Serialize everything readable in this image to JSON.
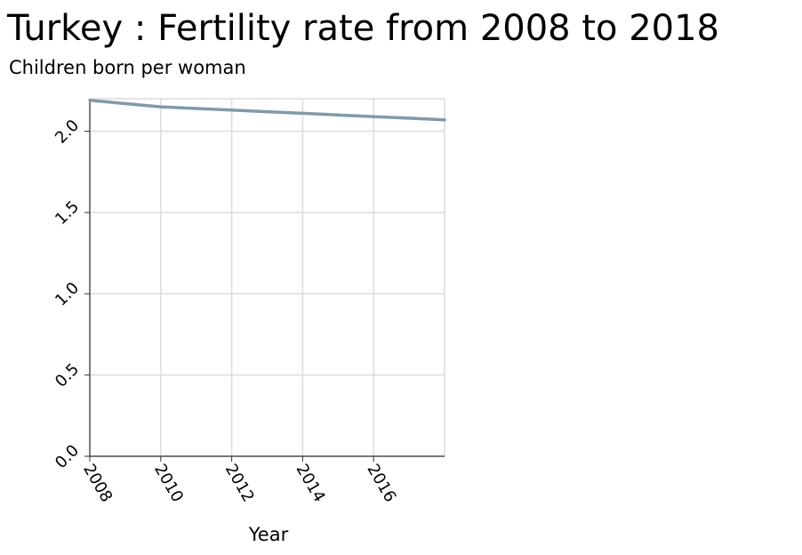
{
  "chart_data": {
    "type": "line",
    "title": "Turkey : Fertility rate from 2008 to 2018",
    "xlabel": "Year",
    "ylabel": "Children born per woman",
    "xlim": [
      2008,
      2018
    ],
    "ylim": [
      0,
      2.2
    ],
    "x_ticks": [
      "2008",
      "2010",
      "2012",
      "2014",
      "2016"
    ],
    "y_ticks": [
      "0.0",
      "0.5",
      "1.0",
      "1.5",
      "2.0"
    ],
    "grid": true,
    "line_color": "#7f9aab",
    "series": [
      {
        "x": [
          2008,
          2009,
          2010,
          2011,
          2012,
          2013,
          2014,
          2015,
          2016,
          2017,
          2018
        ],
        "values": [
          2.19,
          2.17,
          2.15,
          2.14,
          2.13,
          2.12,
          2.11,
          2.1,
          2.09,
          2.08,
          2.07
        ]
      }
    ]
  }
}
